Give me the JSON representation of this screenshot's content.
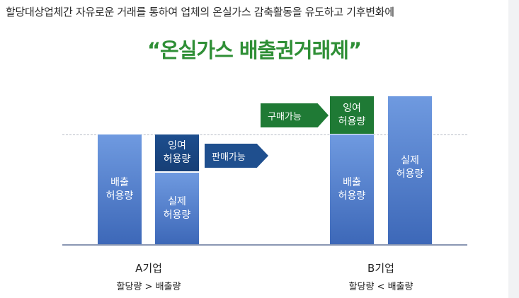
{
  "description": "할당대상업체간 자유로운 거래를 통하여 업체의 온실가스 감축활동을 유도하고 기후변화에",
  "title": "“온실가스 배출권거래제”",
  "company_a": {
    "name": "A기업",
    "condition": "할당량 > 배출량",
    "emission_allowance": [
      "배출",
      "허용량"
    ],
    "surplus_allowance": [
      "잉여",
      "허용량"
    ],
    "actual_allowance": [
      "실제",
      "허용량"
    ]
  },
  "company_b": {
    "name": "B기업",
    "condition": "할당량 < 배출량",
    "surplus_allowance": [
      "잉여",
      "허용량"
    ],
    "emission_allowance": [
      "배출",
      "허용량"
    ],
    "actual_allowance": [
      "실제",
      "허용량"
    ]
  },
  "arrows": {
    "sell": "판매가능",
    "buy": "구매가능"
  },
  "colors": {
    "title_green": "#2f8f36",
    "bar_light_blue": "#5b86d2",
    "bar_dark_blue": "#1d4e8e",
    "bar_green": "#1f7a35"
  }
}
